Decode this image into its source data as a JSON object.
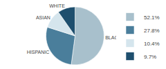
{
  "chart_data": {
    "type": "pie",
    "categories": [
      "BLACK",
      "HISPANIC",
      "ASIAN",
      "WHITE"
    ],
    "values": [
      52.1,
      27.8,
      10.4,
      9.7
    ],
    "value_labels": [
      "52.1%",
      "27.8%",
      "10.4%",
      "9.7%"
    ],
    "colors": [
      "#a8c0cc",
      "#4a7e9b",
      "#d5e5ed",
      "#1e4f6e"
    ],
    "legend": "right"
  }
}
